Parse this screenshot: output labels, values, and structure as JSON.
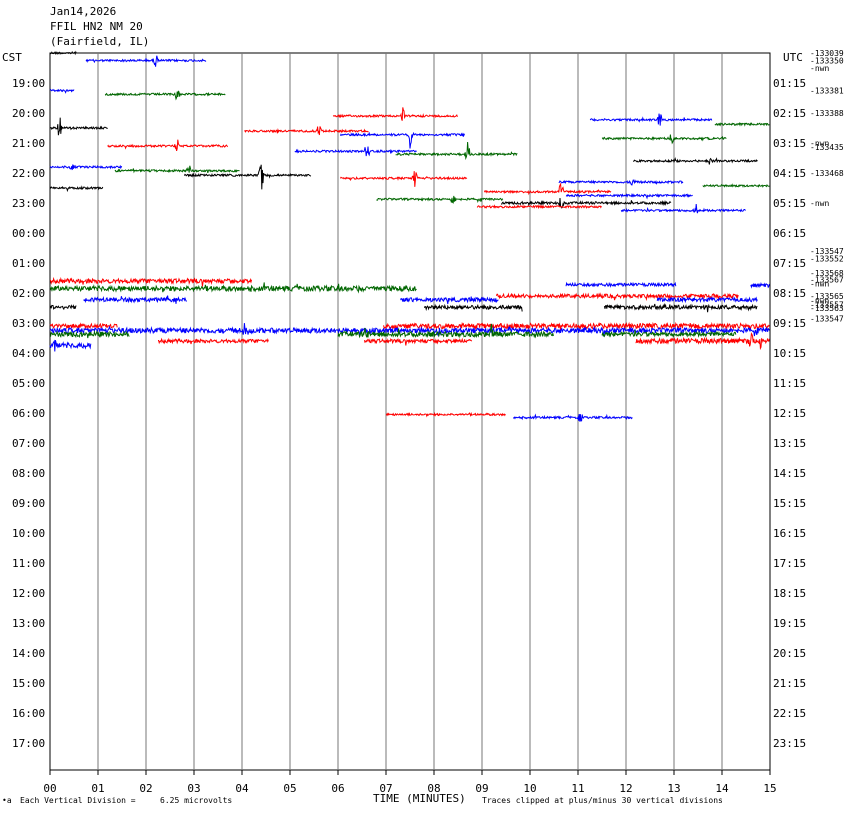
{
  "header": {
    "line1": "Jan14,2026",
    "line2": "FFIL HN2 NM 20",
    "line3": "(Fairfield, IL)"
  },
  "left_axis_label": "CST",
  "right_axis_label": "UTC",
  "footer": {
    "scale_left": "Each Vertical Division =",
    "scale_value": "6.25 microvolts",
    "xlabel": "TIME (MINUTES)",
    "clip_note": "Traces clipped at plus/minus 30 vertical divisions",
    "corner_mark": "•a"
  },
  "colors": {
    "black": "#000000",
    "red": "#ff0000",
    "blue": "#0000ff",
    "green": "#006600",
    "grid": "#777777"
  },
  "chart_data": {
    "type": "helicorder",
    "x_minutes": [
      0,
      15
    ],
    "x_tick_labels": [
      "00",
      "01",
      "02",
      "03",
      "04",
      "05",
      "06",
      "07",
      "08",
      "09",
      "10",
      "11",
      "12",
      "13",
      "14",
      "15"
    ],
    "cst_labels": [
      "19:00",
      "20:00",
      "21:00",
      "22:00",
      "23:00",
      "00:00",
      "01:00",
      "02:00",
      "03:00",
      "04:00",
      "05:00",
      "06:00",
      "07:00",
      "08:00",
      "09:00",
      "10:00",
      "11:00",
      "12:00",
      "13:00",
      "14:00",
      "15:00",
      "16:00",
      "17:00"
    ],
    "utc_labels": [
      "01:15",
      "02:15",
      "03:15",
      "04:15",
      "05:15",
      "06:15",
      "07:15",
      "08:15",
      "09:15",
      "10:15",
      "11:15",
      "12:15",
      "13:15",
      "14:15",
      "15:15",
      "16:15",
      "17:15",
      "18:15",
      "19:15",
      "20:15",
      "21:15",
      "22:15",
      "23:15"
    ],
    "color_cycle": [
      "black",
      "blue",
      "red",
      "green"
    ],
    "right_annotations": [
      {
        "line": 0,
        "text": "-133039"
      },
      {
        "line": 0.5,
        "text": "-133350"
      },
      {
        "line": 1,
        "text": "-nwn"
      },
      {
        "line": 2.5,
        "text": "-133381"
      },
      {
        "line": 4,
        "text": "-133388"
      },
      {
        "line": 6,
        "text": "-nwn"
      },
      {
        "line": 6.25,
        "text": "-133435"
      },
      {
        "line": 8,
        "text": "-133468"
      },
      {
        "line": 10,
        "text": "-nwn"
      },
      {
        "line": 13.2,
        "text": "-133547"
      },
      {
        "line": 13.7,
        "text": "-133552"
      },
      {
        "line": 14.65,
        "text": "-133568"
      },
      {
        "line": 15.1,
        "text": "-133567"
      },
      {
        "line": 15.35,
        "text": "-nwn"
      },
      {
        "line": 16.2,
        "text": "-133565"
      },
      {
        "line": 16.5,
        "text": "-nwn"
      },
      {
        "line": 16.75,
        "text": "-133557"
      },
      {
        "line": 17,
        "text": "-133563"
      },
      {
        "line": 17.7,
        "text": "-133547"
      }
    ],
    "segments": [
      {
        "line": 0,
        "color": "black",
        "start": 0,
        "end": 0.55,
        "level": 0,
        "amp": 1,
        "spikes": []
      },
      {
        "line": 0.5,
        "color": "blue",
        "start": 0.75,
        "end": 3.25,
        "level": 0,
        "amp": 1,
        "spikes": [
          [
            2.2,
            10
          ]
        ]
      },
      {
        "line": 2.5,
        "color": "blue",
        "start": 0,
        "end": 0.5,
        "level": 0,
        "amp": 1,
        "spikes": []
      },
      {
        "line": 2.75,
        "color": "green",
        "start": 1.15,
        "end": 3.65,
        "level": 0,
        "amp": 1,
        "spikes": [
          [
            2.65,
            9
          ]
        ]
      },
      {
        "line": 4.2,
        "color": "red",
        "start": 5.9,
        "end": 8.5,
        "level": 0,
        "amp": 1,
        "spikes": [
          [
            7.35,
            9
          ]
        ]
      },
      {
        "line": 4.45,
        "color": "blue",
        "start": 11.25,
        "end": 13.8,
        "level": 0,
        "amp": 1,
        "spikes": [
          [
            12.7,
            10
          ]
        ]
      },
      {
        "line": 4.75,
        "color": "green",
        "start": 13.85,
        "end": 15,
        "level": 0,
        "amp": 1,
        "spikes": []
      },
      {
        "line": 5,
        "color": "black",
        "start": 0,
        "end": 1.2,
        "level": 0,
        "amp": 1,
        "spikes": [
          [
            0.2,
            16
          ]
        ]
      },
      {
        "line": 5.2,
        "color": "red",
        "start": 4.05,
        "end": 6.65,
        "level": 0,
        "amp": 1,
        "spikes": [
          [
            5.6,
            9
          ]
        ]
      },
      {
        "line": 5.45,
        "color": "blue",
        "start": 6.05,
        "end": 8.65,
        "level": 0,
        "amp": 1,
        "spikes": [
          [
            7.5,
            14
          ]
        ]
      },
      {
        "line": 5.7,
        "color": "green",
        "start": 11.5,
        "end": 14.1,
        "level": 0,
        "amp": 1,
        "spikes": [
          [
            12.95,
            9
          ]
        ]
      },
      {
        "line": 6.2,
        "color": "red",
        "start": 1.2,
        "end": 3.7,
        "level": 0,
        "amp": 1,
        "spikes": [
          [
            2.65,
            8
          ]
        ]
      },
      {
        "line": 6.55,
        "color": "blue",
        "start": 5.1,
        "end": 7.65,
        "level": 0,
        "amp": 1,
        "spikes": [
          [
            6.6,
            10
          ]
        ]
      },
      {
        "line": 6.75,
        "color": "green",
        "start": 7.2,
        "end": 9.75,
        "level": 0,
        "amp": 1,
        "spikes": [
          [
            8.7,
            15
          ]
        ]
      },
      {
        "line": 7.2,
        "color": "black",
        "start": 12.15,
        "end": 14.75,
        "level": 0,
        "amp": 1,
        "spikes": [
          [
            13.75,
            6
          ]
        ]
      },
      {
        "line": 7.6,
        "color": "blue",
        "start": 0,
        "end": 1.5,
        "level": 0,
        "amp": 1,
        "spikes": [
          [
            0.45,
            7
          ]
        ]
      },
      {
        "line": 7.85,
        "color": "green",
        "start": 1.35,
        "end": 3.95,
        "level": 0,
        "amp": 1,
        "spikes": [
          [
            2.9,
            6
          ]
        ]
      },
      {
        "line": 8.15,
        "color": "black",
        "start": 2.8,
        "end": 5.45,
        "level": 0,
        "amp": 1,
        "spikes": [
          [
            4.4,
            20
          ]
        ]
      },
      {
        "line": 8.35,
        "color": "red",
        "start": 6.05,
        "end": 8.7,
        "level": 0,
        "amp": 1,
        "spikes": [
          [
            7.6,
            10
          ]
        ]
      },
      {
        "line": 8.6,
        "color": "blue",
        "start": 10.6,
        "end": 13.2,
        "level": 0,
        "amp": 1,
        "spikes": [
          [
            12.15,
            8
          ]
        ]
      },
      {
        "line": 8.85,
        "color": "green",
        "start": 13.6,
        "end": 15,
        "level": 0,
        "amp": 1,
        "spikes": []
      },
      {
        "line": 9,
        "color": "black",
        "start": 0,
        "end": 1.1,
        "level": 0,
        "amp": 1,
        "spikes": []
      },
      {
        "line": 9.25,
        "color": "red",
        "start": 9.05,
        "end": 11.7,
        "level": 0,
        "amp": 1,
        "spikes": [
          [
            10.65,
            14
          ]
        ]
      },
      {
        "line": 9.5,
        "color": "blue",
        "start": 10.75,
        "end": 13.4,
        "level": 0,
        "amp": 1,
        "spikes": []
      },
      {
        "line": 9.75,
        "color": "green",
        "start": 6.8,
        "end": 9.45,
        "level": 0,
        "amp": 1,
        "spikes": [
          [
            8.4,
            9
          ]
        ]
      },
      {
        "line": 10,
        "color": "black",
        "start": 9.4,
        "end": 12.95,
        "level": 0,
        "amp": 1.2,
        "spikes": [
          [
            10.65,
            12
          ]
        ]
      },
      {
        "line": 10.25,
        "color": "red",
        "start": 8.9,
        "end": 11.5,
        "level": 0,
        "amp": 1,
        "spikes": []
      },
      {
        "line": 10.5,
        "color": "blue",
        "start": 11.9,
        "end": 14.5,
        "level": 0,
        "amp": 1,
        "spikes": [
          [
            13.45,
            9
          ]
        ]
      },
      {
        "line": 15.2,
        "color": "red",
        "start": 0,
        "end": 4.2,
        "level": 0,
        "amp": 2.2,
        "spikes": []
      },
      {
        "line": 15.45,
        "color": "blue",
        "start": 10.75,
        "end": 13.05,
        "level": 0,
        "amp": 1.5,
        "spikes": []
      },
      {
        "line": 15.5,
        "color": "blue",
        "start": 14.6,
        "end": 15,
        "level": 0,
        "amp": 2,
        "spikes": []
      },
      {
        "line": 15.7,
        "color": "green",
        "start": 0,
        "end": 7.65,
        "level": 0,
        "amp": 2.5,
        "spikes": []
      },
      {
        "line": 16.2,
        "color": "red",
        "start": 9.3,
        "end": 14.35,
        "level": 0,
        "amp": 1.8,
        "spikes": []
      },
      {
        "line": 16.45,
        "color": "blue",
        "start": 0.7,
        "end": 2.85,
        "level": 0,
        "amp": 2,
        "spikes": []
      },
      {
        "line": 16.45,
        "color": "blue",
        "start": 7.3,
        "end": 9.35,
        "level": 0,
        "amp": 2,
        "spikes": []
      },
      {
        "line": 16.45,
        "color": "blue",
        "start": 12.65,
        "end": 14.75,
        "level": 0,
        "amp": 2,
        "spikes": []
      },
      {
        "line": 16.95,
        "color": "black",
        "start": 0,
        "end": 0.55,
        "level": 0,
        "amp": 2,
        "spikes": []
      },
      {
        "line": 16.95,
        "color": "black",
        "start": 7.8,
        "end": 9.85,
        "level": 0,
        "amp": 2,
        "spikes": []
      },
      {
        "line": 16.95,
        "color": "black",
        "start": 11.55,
        "end": 14.75,
        "level": 0,
        "amp": 2,
        "spikes": []
      },
      {
        "line": 18.2,
        "color": "red",
        "start": 0,
        "end": 1.4,
        "level": 0,
        "amp": 2,
        "spikes": []
      },
      {
        "line": 18.2,
        "color": "red",
        "start": 6.95,
        "end": 15,
        "level": 0,
        "amp": 2.5,
        "spikes": []
      },
      {
        "line": 18.5,
        "color": "blue",
        "start": 0,
        "end": 15,
        "level": 0,
        "amp": 2.5,
        "spikes": [
          [
            4.05,
            8
          ],
          [
            8.1,
            6
          ]
        ]
      },
      {
        "line": 18.75,
        "color": "green",
        "start": 0,
        "end": 1.65,
        "level": 0,
        "amp": 2.5,
        "spikes": []
      },
      {
        "line": 18.75,
        "color": "green",
        "start": 6,
        "end": 10.5,
        "level": 0,
        "amp": 2.5,
        "spikes": [
          [
            6.6,
            10
          ],
          [
            9.2,
            12
          ]
        ]
      },
      {
        "line": 18.75,
        "color": "green",
        "start": 11.5,
        "end": 14.3,
        "level": 0,
        "amp": 2,
        "spikes": []
      },
      {
        "line": 19.2,
        "color": "red",
        "start": 2.25,
        "end": 4.55,
        "level": 0,
        "amp": 1.8,
        "spikes": []
      },
      {
        "line": 19.2,
        "color": "red",
        "start": 6.55,
        "end": 8.8,
        "level": 0,
        "amp": 1.8,
        "spikes": []
      },
      {
        "line": 19.2,
        "color": "red",
        "start": 12.2,
        "end": 15,
        "level": 0,
        "amp": 2.5,
        "spikes": [
          [
            14.6,
            12
          ],
          [
            14.8,
            10
          ]
        ]
      },
      {
        "line": 19.5,
        "color": "blue",
        "start": 0,
        "end": 0.85,
        "level": 0,
        "amp": 2.5,
        "spikes": [
          [
            0.1,
            10
          ]
        ]
      },
      {
        "line": 24.1,
        "color": "red",
        "start": 7,
        "end": 9.5,
        "level": 0,
        "amp": 1,
        "spikes": []
      },
      {
        "line": 24.3,
        "color": "blue",
        "start": 9.65,
        "end": 12.15,
        "level": 0,
        "amp": 1,
        "spikes": [
          [
            11.05,
            6
          ]
        ]
      }
    ]
  }
}
